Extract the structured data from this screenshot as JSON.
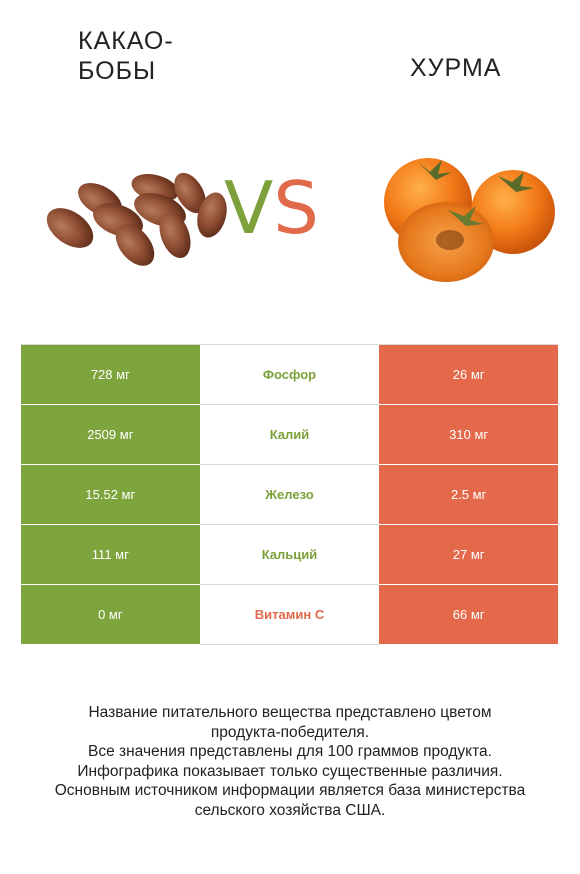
{
  "header": {
    "left_title": "Какао-бобы",
    "right_title": "Хурма",
    "vs_v": "V",
    "vs_s": "S"
  },
  "colors": {
    "left": "#7ea53d",
    "right": "#e3694a",
    "winner_left": "#7da13a",
    "winner_right": "#e06a49"
  },
  "rows": [
    {
      "nutrient": "Фосфор",
      "left": "728 мг",
      "right": "26 мг",
      "winner": "left"
    },
    {
      "nutrient": "Калий",
      "left": "2509 мг",
      "right": "310 мг",
      "winner": "left"
    },
    {
      "nutrient": "Железо",
      "left": "15.52 мг",
      "right": "2.5 мг",
      "winner": "left"
    },
    {
      "nutrient": "Кальций",
      "left": "111 мг",
      "right": "27 мг",
      "winner": "left"
    },
    {
      "nutrient": "Витамин C",
      "left": "0 мг",
      "right": "66 мг",
      "winner": "right"
    }
  ],
  "footer": {
    "line1": "Название питательного вещества представлено цветом",
    "line2": "продукта-победителя.",
    "line3": "Все значения представлены для 100 граммов продукта.",
    "line4": "Инфографика показывает только существенные различия.",
    "line5": "Основным источником информации является база министерства",
    "line6": "сельского хозяйства США."
  }
}
